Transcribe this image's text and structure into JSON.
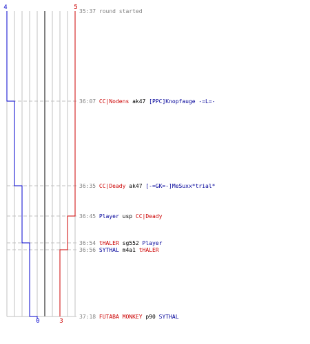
{
  "team_scores": {
    "blue_start": "4",
    "red_start": "5",
    "blue_end": "0",
    "red_end": "3"
  },
  "colors": {
    "blue_team": "#0000cc",
    "red_team": "#cc0000",
    "grid": "#c0c0c0",
    "center_line": "#808080",
    "time_text": "#808080",
    "weapon_text": "#000000"
  },
  "events": [
    {
      "time": "35:37",
      "parts": [
        {
          "text": "round started",
          "team": "gray"
        }
      ]
    },
    {
      "time": "36:07",
      "parts": [
        {
          "text": "CC|Nodens",
          "team": "red"
        },
        {
          "text": " ak47 ",
          "team": "black"
        },
        {
          "text": "[PPC]Knopfauge -=L=-",
          "team": "blue"
        }
      ]
    },
    {
      "time": "36:35",
      "parts": [
        {
          "text": "CC|Deady",
          "team": "red"
        },
        {
          "text": " ak47 ",
          "team": "black"
        },
        {
          "text": "[-=GK=-]MeSuxx*trial*",
          "team": "blue"
        }
      ]
    },
    {
      "time": "36:45",
      "parts": [
        {
          "text": "Player",
          "team": "blue"
        },
        {
          "text": " usp ",
          "team": "black"
        },
        {
          "text": "CC|Deady",
          "team": "red"
        }
      ]
    },
    {
      "time": "36:54",
      "parts": [
        {
          "text": "tHALER",
          "team": "red"
        },
        {
          "text": " sg552 ",
          "team": "black"
        },
        {
          "text": "Player",
          "team": "blue"
        }
      ]
    },
    {
      "time": "36:56",
      "parts": [
        {
          "text": "SYTHAL",
          "team": "blue"
        },
        {
          "text": " m4a1 ",
          "team": "black"
        },
        {
          "text": "tHALER",
          "team": "red"
        }
      ]
    },
    {
      "time": "37:18",
      "parts": [
        {
          "text": "FUTABA MONKEY",
          "team": "red"
        },
        {
          "text": " p90 ",
          "team": "black"
        },
        {
          "text": "SYTHAL",
          "team": "blue"
        }
      ]
    }
  ]
}
